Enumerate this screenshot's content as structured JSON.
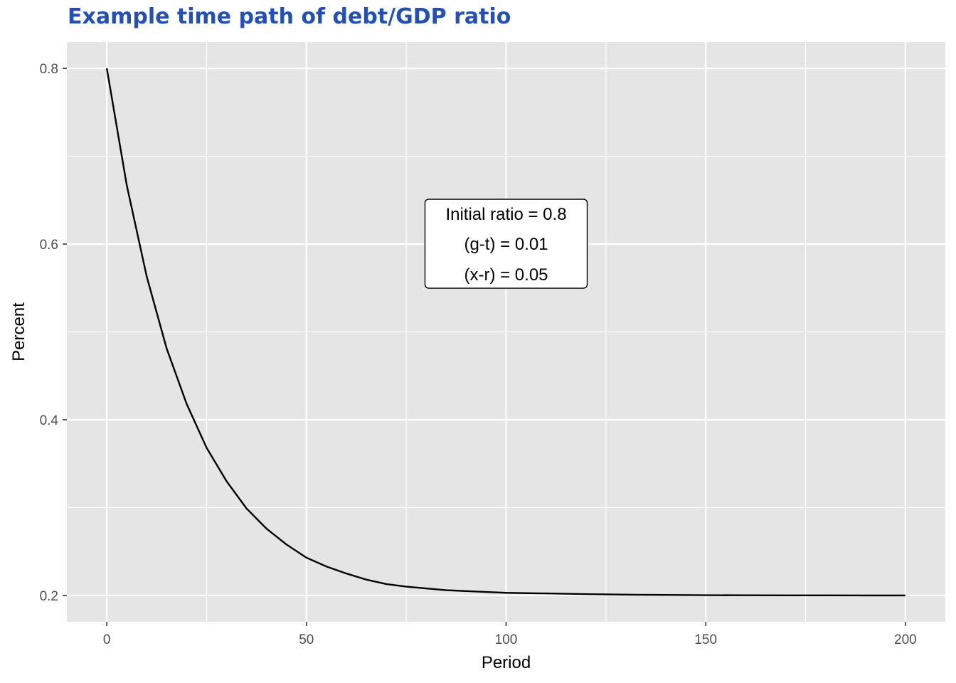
{
  "colors": {
    "title": "#2450B4",
    "panel_background": "#E5E5E5",
    "grid": "#FFFFFF",
    "line": "#000000",
    "annotation_fill": "#FFFFFF",
    "annotation_border": "#000000"
  },
  "chart_data": {
    "type": "line",
    "title": "Example time path of debt/GDP ratio",
    "xlabel": "Period",
    "ylabel": "Percent",
    "xlim": [
      -10,
      210
    ],
    "ylim": [
      0.17,
      0.83
    ],
    "xticks": [
      0,
      50,
      100,
      150,
      200
    ],
    "yticks": [
      0.2,
      0.4,
      0.6,
      0.8
    ],
    "xtick_labels": [
      "0",
      "50",
      "100",
      "150",
      "200"
    ],
    "ytick_labels": [
      "0.2",
      "0.4",
      "0.6",
      "0.8"
    ],
    "x_minor_grid": [
      25,
      75,
      125,
      175
    ],
    "y_minor_grid": [
      0.3,
      0.5,
      0.7
    ],
    "grid": true,
    "legend": "none",
    "series": [
      {
        "x": [
          0,
          5,
          10,
          15,
          20,
          25,
          30,
          35,
          40,
          45,
          50,
          55,
          60,
          65,
          70,
          75,
          80,
          85,
          90,
          95,
          100,
          110,
          120,
          130,
          140,
          150,
          160,
          170,
          180,
          190,
          200
        ],
        "y": [
          0.8,
          0.667,
          0.563,
          0.481,
          0.418,
          0.368,
          0.33,
          0.299,
          0.276,
          0.258,
          0.243,
          0.233,
          0.225,
          0.218,
          0.213,
          0.21,
          0.208,
          0.206,
          0.205,
          0.204,
          0.203,
          0.2023,
          0.2015,
          0.2009,
          0.2006,
          0.2003,
          0.2002,
          0.2001,
          0.2001,
          0.2,
          0.2
        ]
      }
    ],
    "annotation": {
      "lines": [
        "Initial ratio = 0.8",
        "(g-t) = 0.01",
        "(x-r) = 0.05"
      ],
      "x": 100,
      "y": 0.6
    }
  }
}
